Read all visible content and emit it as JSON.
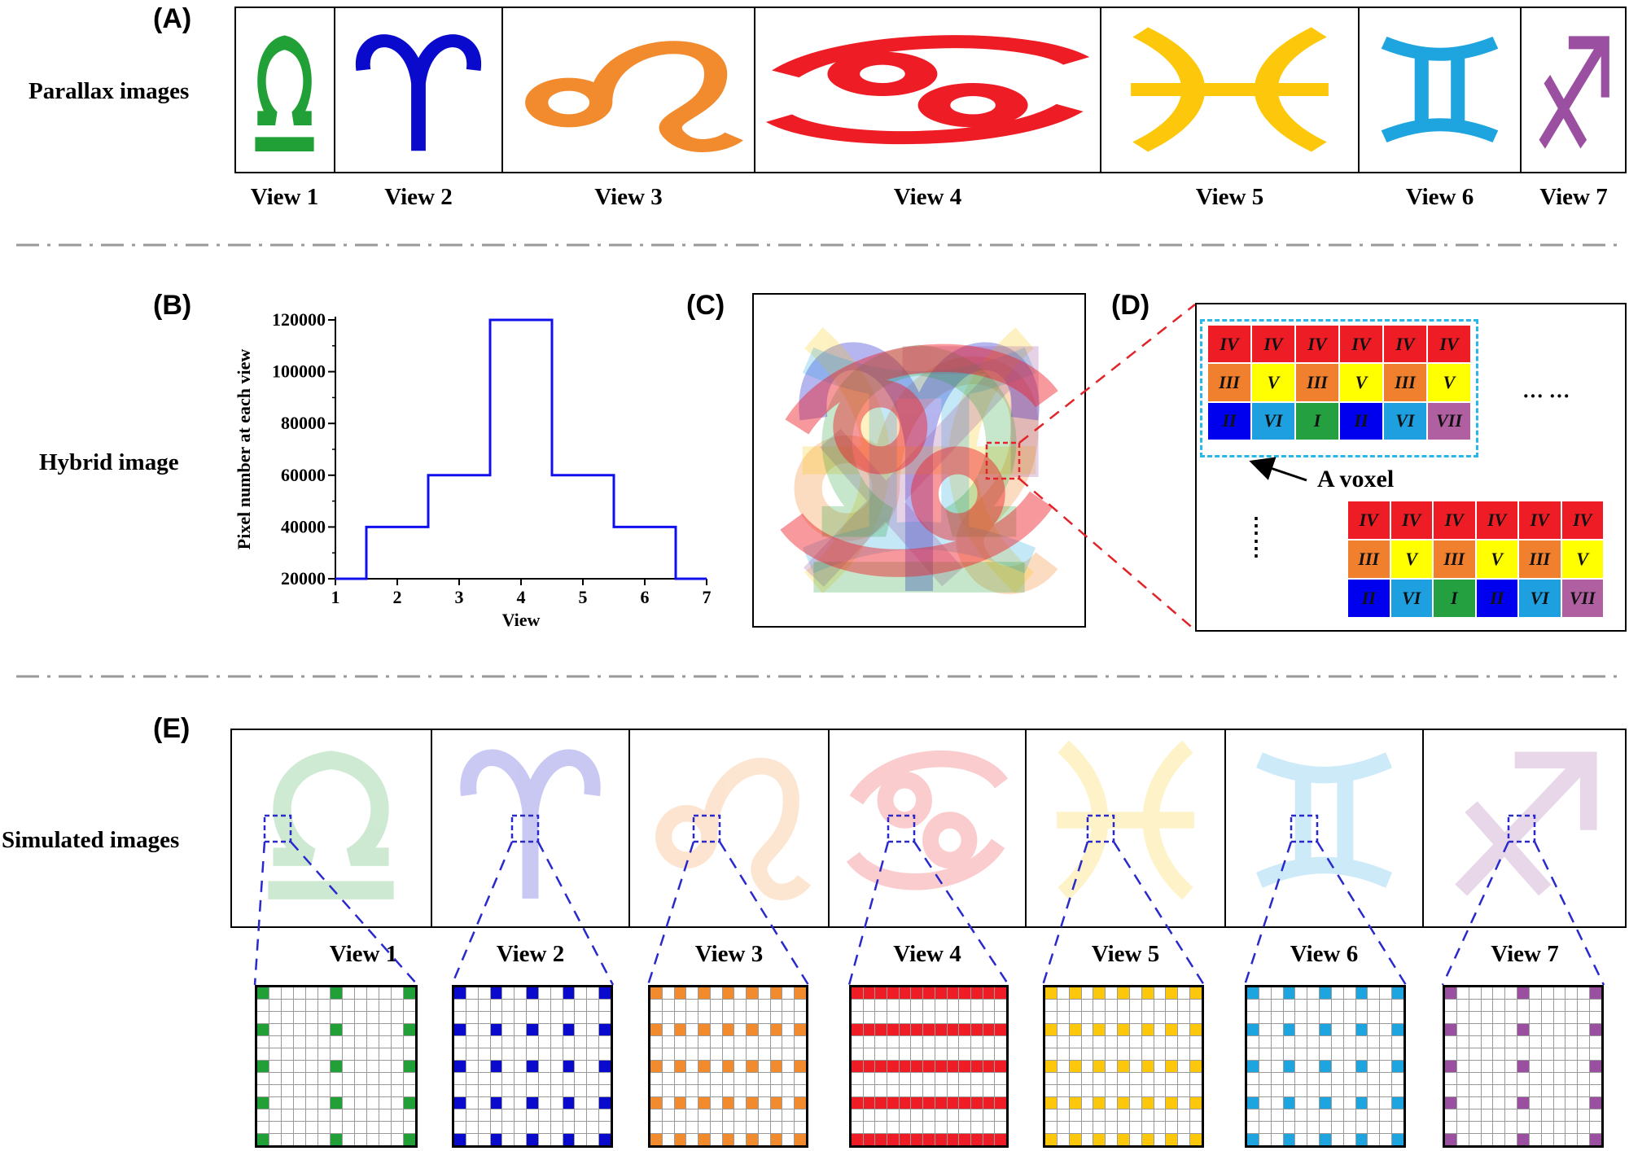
{
  "colors": {
    "libra": "#21a038",
    "aries": "#0a0acc",
    "leo": "#f28a2e",
    "cancer": "#ee1c25",
    "pisces": "#fdc80c",
    "gemini": "#1ea5e0",
    "sagittarius": "#9b4fa0",
    "voxel_box": "#29b6e8",
    "zoom_red": "#e0242a",
    "zoom_blue": "#2a2acc"
  },
  "panelA": {
    "letter": "(A)",
    "row_label": "Parallax images",
    "views": [
      "View 1",
      "View 2",
      "View 3",
      "View 4",
      "View 5",
      "View 6",
      "View 7"
    ],
    "symbols": [
      "libra",
      "aries",
      "leo",
      "cancer",
      "pisces",
      "gemini",
      "sagittarius"
    ]
  },
  "panelB": {
    "letter": "(B)",
    "row_label": "Hybrid image"
  },
  "panelC": {
    "letter": "(C)"
  },
  "panelD": {
    "letter": "(D)",
    "voxel_label": "A voxel",
    "hdots": "··· ···",
    "vdots": "⋮\n⋮",
    "voxel_rows": [
      [
        "IV",
        "IV",
        "IV",
        "IV",
        "IV",
        "IV"
      ],
      [
        "III",
        "V",
        "III",
        "V",
        "III",
        "V"
      ],
      [
        "II",
        "VI",
        "I",
        "II",
        "VI",
        "VII"
      ]
    ],
    "voxel_colors": [
      [
        "cancer",
        "cancer",
        "cancer",
        "cancer",
        "cancer",
        "cancer"
      ],
      [
        "leo",
        "pisces_y",
        "leo",
        "pisces_y",
        "leo",
        "pisces_y"
      ],
      [
        "aries",
        "gemini",
        "libra",
        "aries",
        "gemini",
        "sagittarius"
      ]
    ]
  },
  "panelE": {
    "letter": "(E)",
    "row_label": "Simulated images",
    "views": [
      "View 1",
      "View 2",
      "View 3",
      "View 4",
      "View 5",
      "View 6",
      "View 7"
    ],
    "grid_size": 13,
    "lit_columns": [
      [
        0,
        6,
        12
      ],
      [
        0,
        3,
        6,
        9,
        12
      ],
      [
        0,
        2,
        4,
        6,
        8,
        10,
        12
      ],
      [
        0,
        1,
        2,
        3,
        4,
        5,
        6,
        7,
        8,
        9,
        10,
        11,
        12
      ],
      [
        0,
        2,
        4,
        6,
        8,
        10,
        12
      ],
      [
        0,
        3,
        6,
        9,
        12
      ],
      [
        0,
        6,
        12
      ]
    ],
    "lit_rows": [
      0,
      3,
      6,
      9,
      12
    ]
  },
  "chart_data": {
    "type": "line",
    "step": "center",
    "x": [
      1,
      2,
      3,
      4,
      5,
      6,
      7
    ],
    "values": [
      20000,
      40000,
      60000,
      120000,
      60000,
      40000,
      20000
    ],
    "xlabel": "View",
    "ylabel": "Pixel number at each view",
    "xlim": [
      1,
      7
    ],
    "ylim": [
      20000,
      120000
    ],
    "xticks": [
      "1",
      "2",
      "3",
      "4",
      "5",
      "6",
      "7"
    ],
    "yticks": [
      "20000",
      "40000",
      "60000",
      "80000",
      "100000",
      "120000"
    ],
    "line_color": "#1010ee",
    "grid": false
  }
}
